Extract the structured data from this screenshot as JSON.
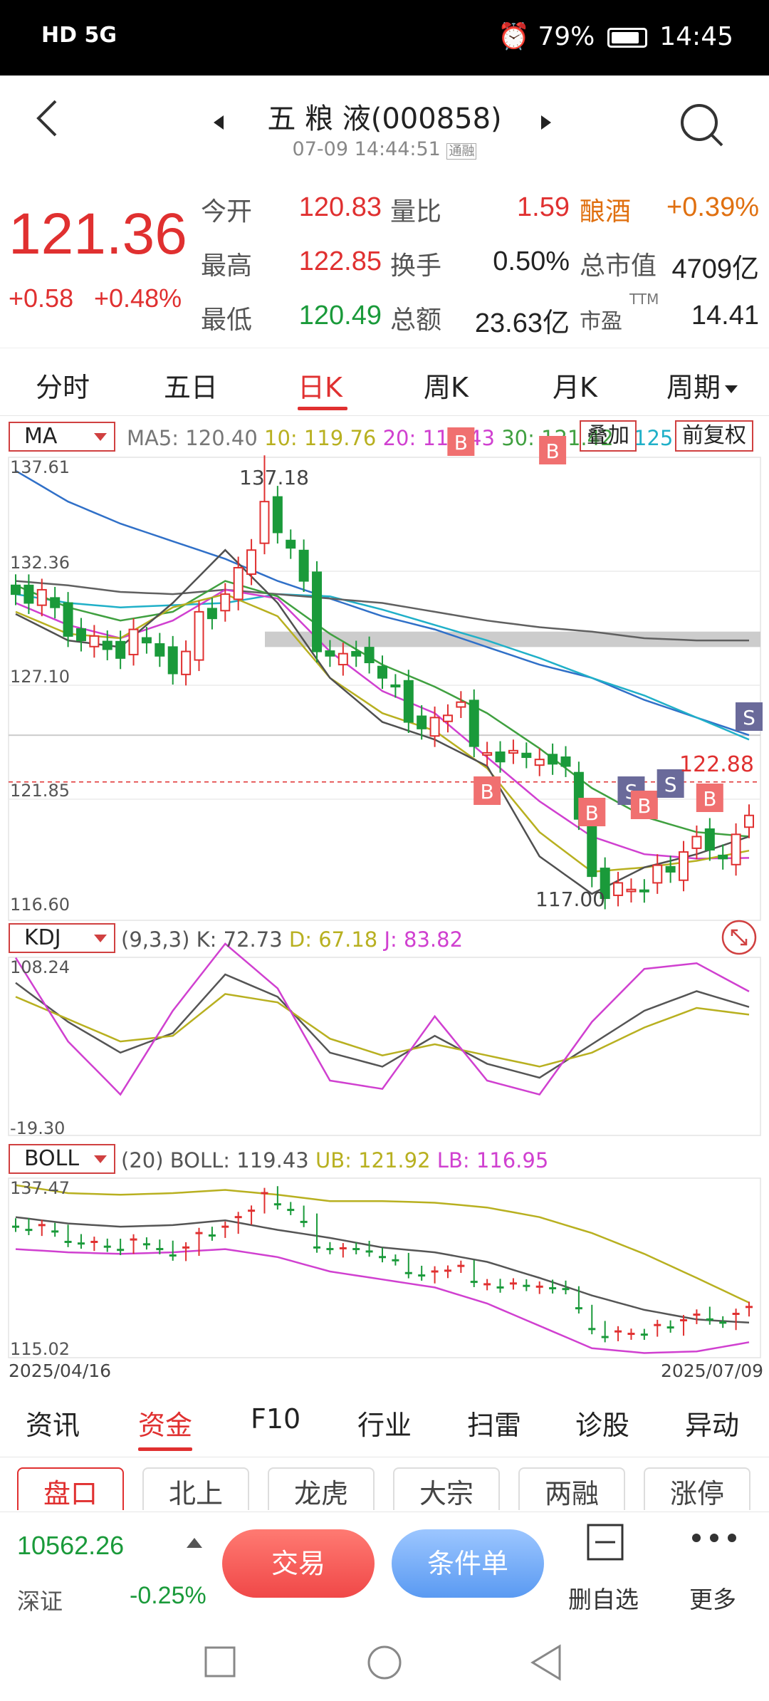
{
  "status_bar": {
    "left": "HD 5G",
    "battery": "79%",
    "time": "14:45"
  },
  "header": {
    "name": "五 粮 液(000858)",
    "datetime": "07-09 14:44:51",
    "tag": "通融"
  },
  "quote": {
    "price": "121.36",
    "change": "+0.58",
    "change_pct": "+0.48%",
    "rows": [
      [
        {
          "label": "今开",
          "value": "120.83",
          "color": "#e03030"
        },
        {
          "label": "量比",
          "value": "1.59",
          "color": "#e03030"
        },
        {
          "label": "酿酒",
          "value": "+0.39%",
          "color": "#e07010"
        }
      ],
      [
        {
          "label": "最高",
          "value": "122.85",
          "color": "#e03030"
        },
        {
          "label": "换手",
          "value": "0.50%",
          "color": "#222"
        },
        {
          "label": "总市值",
          "value": "4709亿",
          "color": "#222"
        }
      ],
      [
        {
          "label": "最低",
          "value": "120.49",
          "color": "#1a9a3a"
        },
        {
          "label": "总额",
          "value": "23.63亿",
          "color": "#222"
        },
        {
          "label": "市盈",
          "value": "14.41",
          "color": "#222",
          "sup": "TTM"
        }
      ]
    ]
  },
  "period_tabs": [
    "分时",
    "五日",
    "日K",
    "周K",
    "月K",
    "周期"
  ],
  "active_period": 2,
  "ma": {
    "select": "MA",
    "ma5": "MA5: 120.40",
    "ma10": "10: 119.76",
    "ma20": "20: 119.43",
    "ma30": "30: 121.42",
    "ma60": "125.9",
    "overlay_btn": "叠加",
    "adjust_btn": "前复权",
    "y_labels": [
      "137.61",
      "132.36",
      "127.10",
      "121.85",
      "116.60"
    ],
    "high_label": "137.18",
    "low_label": "117.00",
    "last_label": "122.88"
  },
  "kdj": {
    "select": "KDJ",
    "params": "(9,3,3)",
    "k": "K: 72.73",
    "d": "D: 67.18",
    "j": "J: 83.82",
    "y_top": "108.24",
    "y_bot": "-19.30"
  },
  "boll": {
    "select": "BOLL",
    "params": "(20)",
    "boll": "BOLL: 119.43",
    "ub": "UB: 121.92",
    "lb": "LB: 116.95",
    "y_top": "137.47",
    "y_bot": "115.02"
  },
  "date_range": {
    "start": "2025/04/16",
    "end": "2025/07/09"
  },
  "func_tabs": [
    "资讯",
    "资金",
    "F10",
    "行业",
    "扫雷",
    "诊股",
    "异动"
  ],
  "active_func": 1,
  "sub_tabs": [
    "盘口",
    "北上",
    "龙虎",
    "大宗",
    "两融",
    "涨停"
  ],
  "bottom": {
    "index_value": "10562.26",
    "index_name": "深证",
    "index_change": "-0.25%",
    "trade": "交易",
    "condition": "条件单",
    "remove": "删自选",
    "more": "更多"
  },
  "signal_labels": {
    "buy": "B",
    "sell": "S"
  },
  "colors": {
    "up": "#e03030",
    "down": "#1a9a3a",
    "ma5": "#505050",
    "ma10": "#b8b020",
    "ma20": "#d040d0",
    "ma30": "#40a040",
    "ma60": "#20b0c8",
    "ma120": "#3070c8"
  }
}
